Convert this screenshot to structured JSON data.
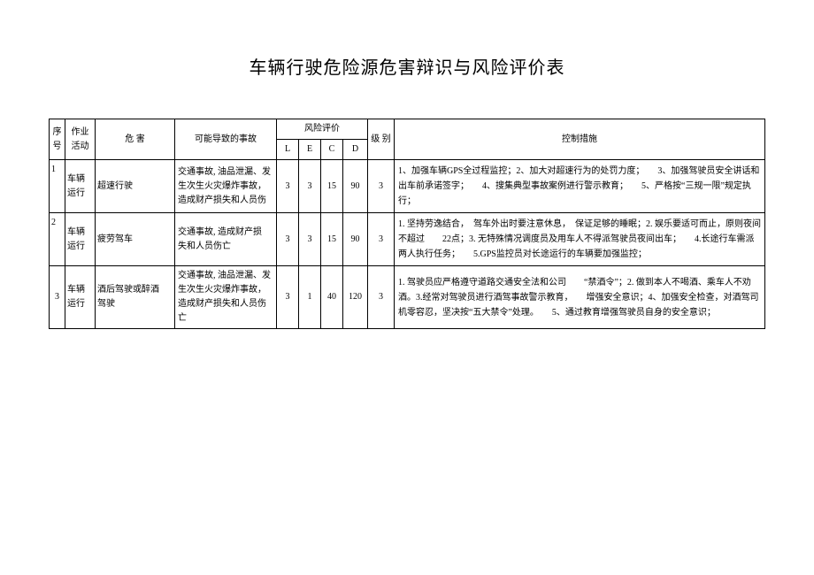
{
  "title": "车辆行驶危险源危害辩识与风险评价表",
  "header": {
    "seq": "序号",
    "activity": "作业活动",
    "hazard": "危 害",
    "accident": "可能导致的事故",
    "risk_eval": "风险评价",
    "L": "L",
    "E": "E",
    "C": "C",
    "D": "D",
    "level": "级 别",
    "control": "控制措施"
  },
  "rows": [
    {
      "seq": "1",
      "activity": "车辆运行",
      "hazard": "超速行驶",
      "accident": "交通事故, 油品泄漏、发　生次生火灾爆炸事故，　造成财产损失和人员伤",
      "L": "3",
      "E": "3",
      "C": "15",
      "D": "90",
      "level": "3",
      "control": "1、加强车辆GPS全过程监控；2、加大对超速行为的处罚力度；　　3、加强驾驶员安全讲话和出车前承诺签字；　　4、搜集典型事故案例进行警示教育；　　5、严格按“三规一限”规定执行；"
    },
    {
      "seq": "2",
      "activity": "车辆运行",
      "hazard": "疲劳驾车",
      "accident": "交通事故, 造成财产损　失和人员伤亡",
      "L": "3",
      "E": "3",
      "C": "15",
      "D": "90",
      "level": "3",
      "control": "1. 坚持劳逸结合，　驾车外出时要注意休息，　保证足够的睡眠；2. 娱乐要适可而止，原则夜间不超过　　22点；3. 无特殊情况调度员及用车人不得派驾驶员夜间出车；　　4.长途行车需派两人执行任务；　　5.GPS监控员对长途运行的车辆要加强监控；"
    },
    {
      "seq": "3",
      "activity": "车辆运行",
      "hazard": "酒后驾驶或醉酒　驾驶",
      "accident": "交通事故, 油品泄漏、发生次生火灾爆炸事故，造成财产损失和人员伤亡",
      "L": "3",
      "E": "1",
      "C": "40",
      "D": "120",
      "level": "3",
      "control": "1. 驾驶员应严格遵守道路交通安全法和公司　　“禁酒令”；2. 做到本人不喝酒、乘车人不劝酒。3.经常对驾驶员进行酒驾事故警示教育，　　增强安全意识；4、加强安全检查，对酒驾司机零容忍，坚决按“五大禁令”处理。　　5、通过教育增强驾驶员自身的安全意识；"
    }
  ]
}
